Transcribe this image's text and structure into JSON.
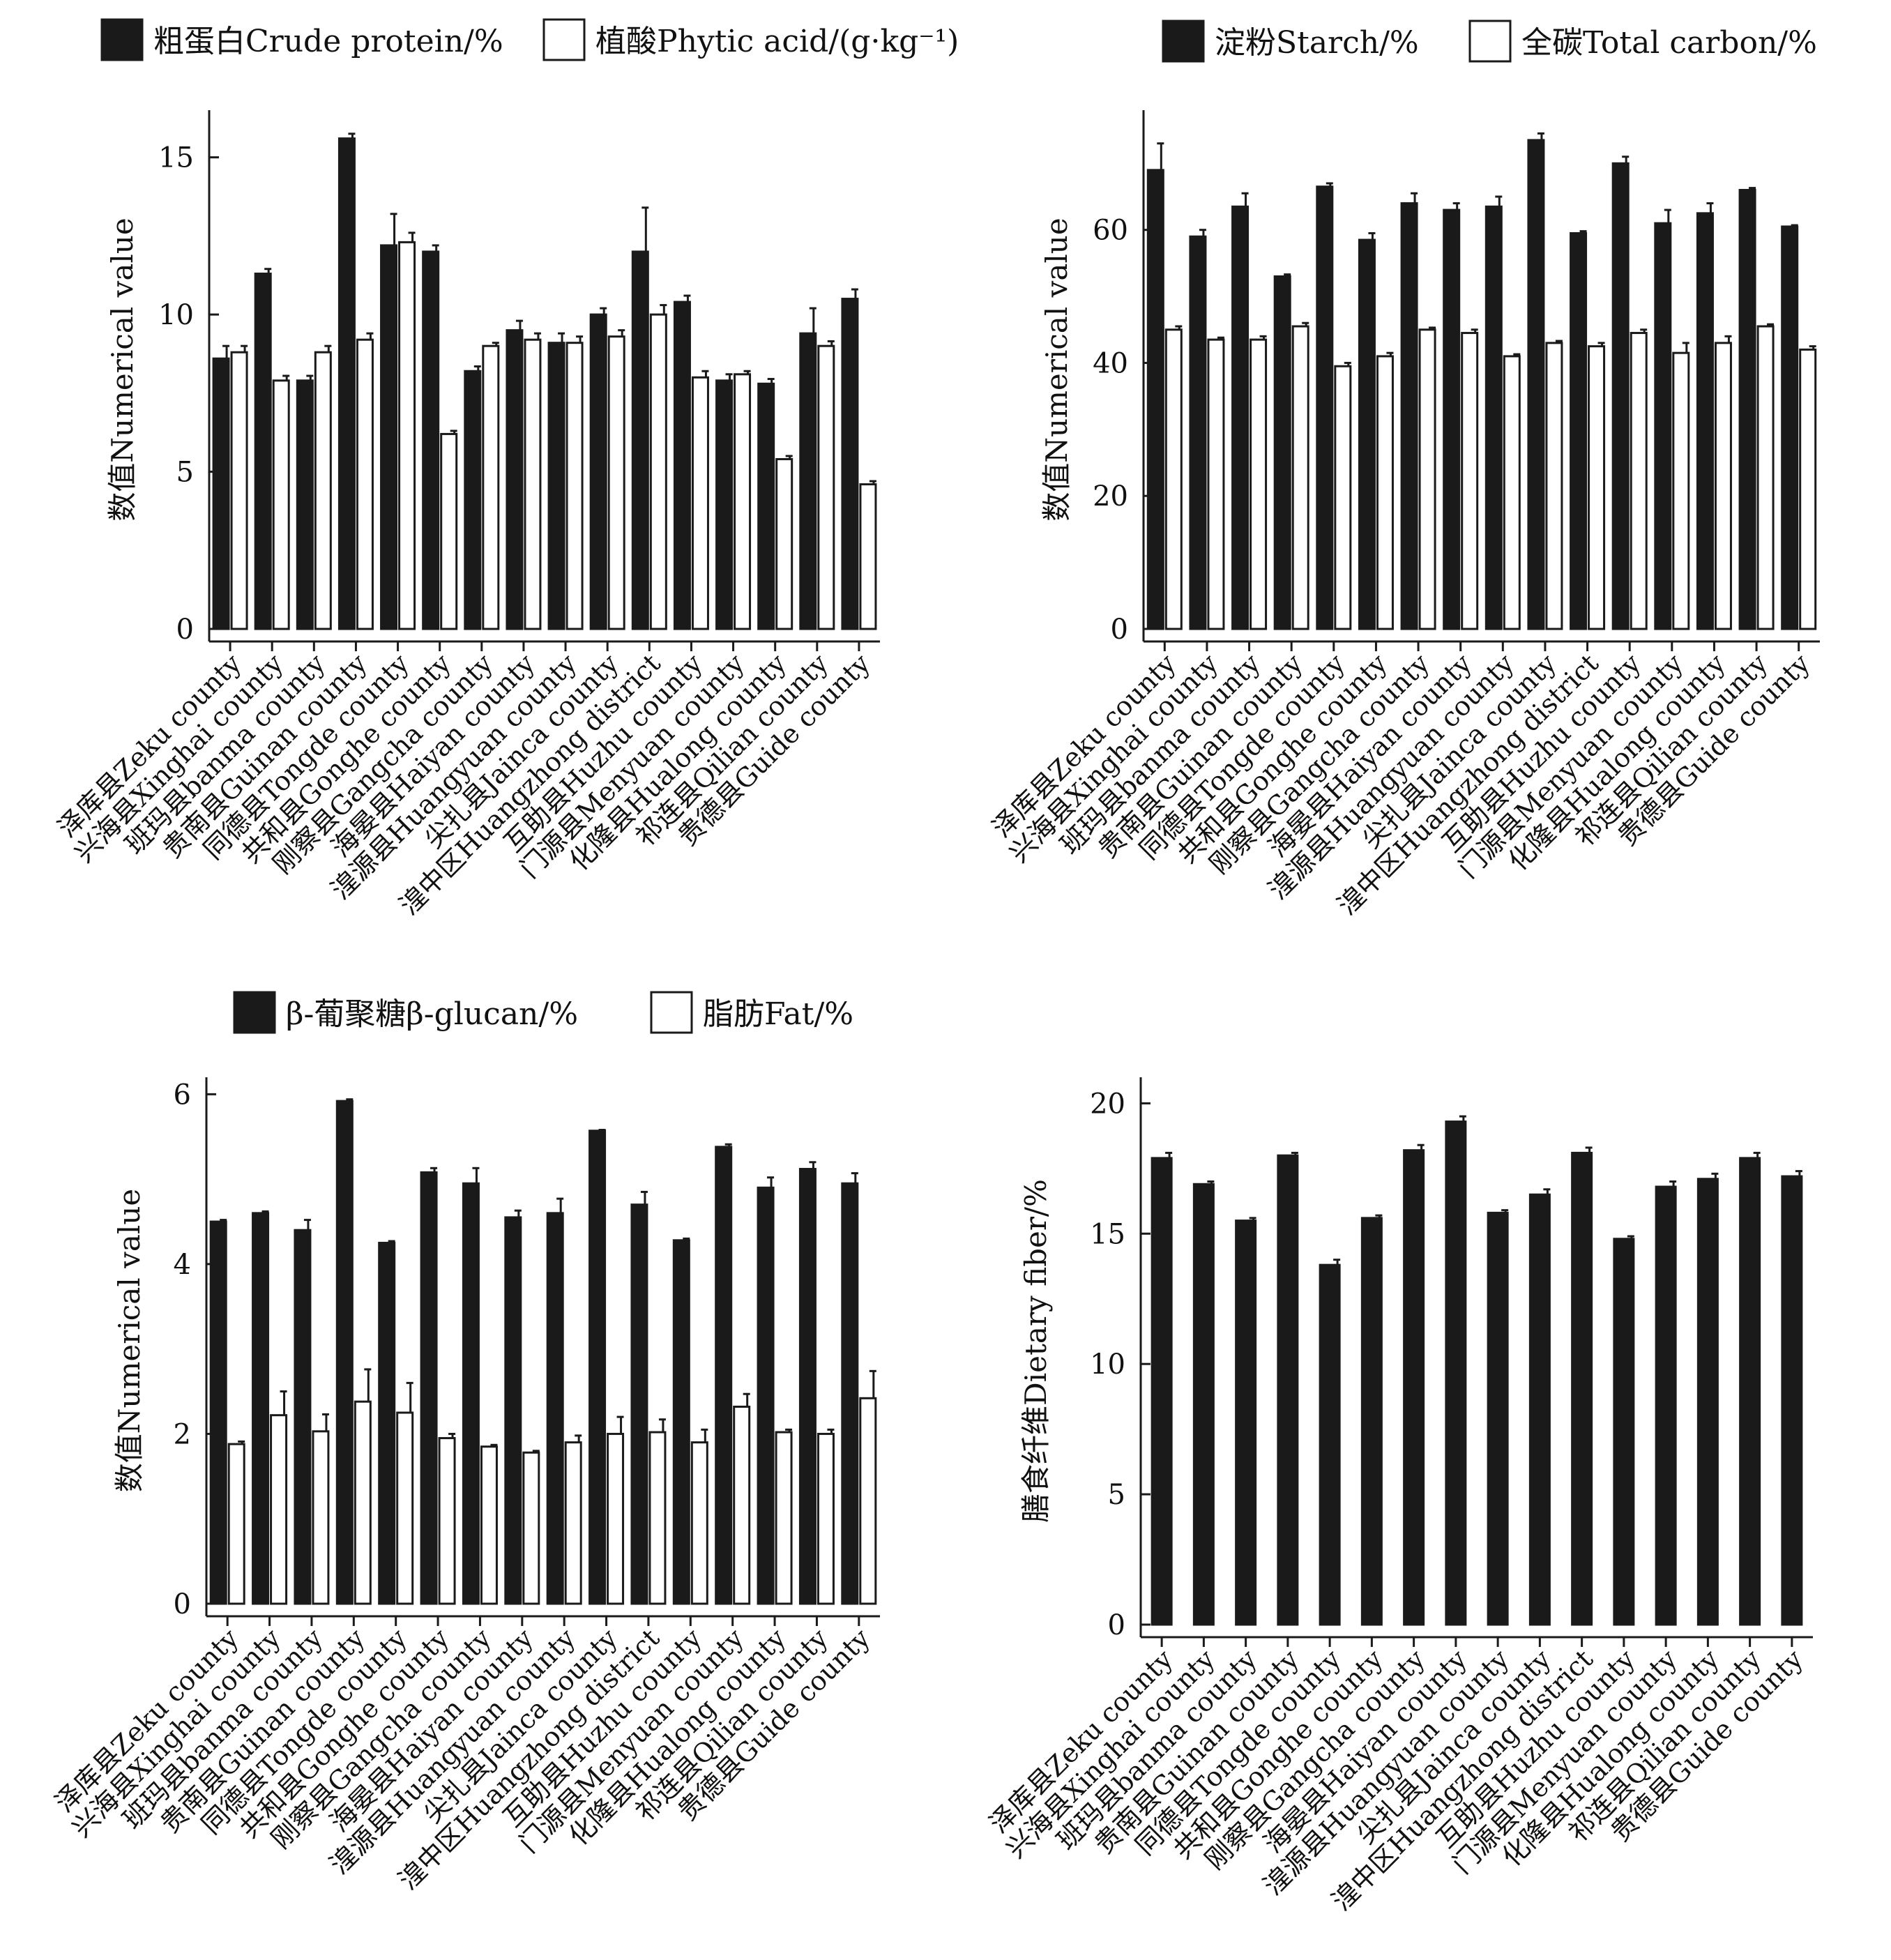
{
  "colors": {
    "filled": "#1a1a1a",
    "hollow": "#ffffff",
    "stroke": "#1a1a1a"
  },
  "chart_data": [
    {
      "type": "bar",
      "ylabel": "数值Numerical value",
      "ylim": [
        0,
        16.5
      ],
      "yticks": [
        0,
        5,
        10,
        15
      ],
      "categories": [
        "泽库县Zeku county",
        "兴海县Xinghai county",
        "班玛县banma county",
        "贵南县Guinan county",
        "同德县Tongde county",
        "共和县Gonghe county",
        "刚察县Gangcha county",
        "海晏县Haiyan county",
        "湟源县Huangyuan county",
        "尖扎县Jainca county",
        "湟中区Huangzhong district",
        "互助县Huzhu county",
        "门源县Menyuan county",
        "化隆县Hualong county",
        "祁连县Qilian county",
        "贵德县Guide county"
      ],
      "series": [
        {
          "name": "粗蛋白Crude protein/%",
          "fill": "filled",
          "values": [
            8.6,
            11.3,
            7.9,
            15.6,
            12.2,
            12.0,
            8.2,
            9.5,
            9.1,
            10.0,
            12.0,
            10.4,
            7.9,
            7.8,
            9.4,
            10.5
          ],
          "errors": [
            0.4,
            0.15,
            0.15,
            0.15,
            1.0,
            0.2,
            0.15,
            0.3,
            0.3,
            0.2,
            1.4,
            0.2,
            0.2,
            0.15,
            0.8,
            0.3
          ]
        },
        {
          "name": "植酸Phytic acid/(g·kg⁻¹)",
          "fill": "hollow",
          "values": [
            8.8,
            7.9,
            8.8,
            9.2,
            12.3,
            6.2,
            9.0,
            9.2,
            9.1,
            9.3,
            10.0,
            8.0,
            8.1,
            5.4,
            9.0,
            4.6
          ],
          "errors": [
            0.2,
            0.15,
            0.2,
            0.2,
            0.3,
            0.1,
            0.1,
            0.2,
            0.2,
            0.2,
            0.3,
            0.2,
            0.1,
            0.1,
            0.15,
            0.1
          ]
        }
      ]
    },
    {
      "type": "bar",
      "ylabel": "数值Numerical value",
      "ylim": [
        0,
        78
      ],
      "yticks": [
        0,
        20,
        40,
        60
      ],
      "categories": [
        "泽库县Zeku county",
        "兴海县Xinghai county",
        "班玛县banma county",
        "贵南县Guinan county",
        "同德县Tongde county",
        "共和县Gonghe county",
        "刚察县Gangcha county",
        "海晏县Haiyan county",
        "湟源县Huangyuan county",
        "尖扎县Jainca county",
        "湟中区Huangzhong district",
        "互助县Huzhu county",
        "门源县Menyuan county",
        "化隆县Hualong county",
        "祁连县Qilian county",
        "贵德县Guide county"
      ],
      "series": [
        {
          "name": "淀粉Starch/%",
          "fill": "filled",
          "values": [
            69,
            59,
            63.5,
            53,
            66.5,
            58.5,
            64,
            63,
            63.5,
            73.5,
            59.5,
            70,
            61,
            62.5,
            66,
            60.5
          ],
          "errors": [
            4,
            1,
            2,
            0.3,
            0.5,
            1,
            1.5,
            1,
            1.5,
            1,
            0.3,
            1,
            2,
            1.5,
            0.3,
            0.2
          ]
        },
        {
          "name": "全碳Total carbon/%",
          "fill": "hollow",
          "values": [
            45,
            43.5,
            43.5,
            45.5,
            39.5,
            41,
            45,
            44.5,
            41,
            43,
            42.5,
            44.5,
            41.5,
            43,
            45.5,
            42
          ],
          "errors": [
            0.5,
            0.3,
            0.5,
            0.5,
            0.5,
            0.5,
            0.3,
            0.5,
            0.3,
            0.3,
            0.5,
            0.5,
            1.5,
            1,
            0.3,
            0.5
          ]
        }
      ]
    },
    {
      "type": "bar",
      "ylabel": "数值Numerical value",
      "ylim": [
        0,
        6.2
      ],
      "yticks": [
        0,
        2,
        4,
        6
      ],
      "categories": [
        "泽库县Zeku county",
        "兴海县Xinghai county",
        "班玛县banma county",
        "贵南县Guinan county",
        "同德县Tongde county",
        "共和县Gonghe county",
        "刚察县Gangcha county",
        "海晏县Haiyan county",
        "湟源县Huangyuan county",
        "尖扎县Jainca county",
        "湟中区Huangzhong district",
        "互助县Huzhu county",
        "门源县Menyuan county",
        "化隆县Hualong county",
        "祁连县Qilian county",
        "贵德县Guide county"
      ],
      "series": [
        {
          "name": "β-葡聚糖β-glucan/%",
          "fill": "filled",
          "values": [
            4.5,
            4.6,
            4.4,
            5.92,
            4.25,
            5.08,
            4.95,
            4.55,
            4.6,
            5.57,
            4.7,
            4.28,
            5.38,
            4.9,
            5.12,
            4.95
          ],
          "errors": [
            0.02,
            0.02,
            0.12,
            0.02,
            0.02,
            0.05,
            0.18,
            0.08,
            0.17,
            0.01,
            0.15,
            0.02,
            0.03,
            0.12,
            0.08,
            0.12
          ]
        },
        {
          "name": "脂肪Fat/%",
          "fill": "hollow",
          "values": [
            1.88,
            2.22,
            2.03,
            2.38,
            2.25,
            1.95,
            1.85,
            1.78,
            1.9,
            2.0,
            2.02,
            1.9,
            2.32,
            2.02,
            2.0,
            2.42
          ],
          "errors": [
            0.03,
            0.28,
            0.2,
            0.38,
            0.35,
            0.05,
            0.02,
            0.02,
            0.08,
            0.2,
            0.15,
            0.15,
            0.15,
            0.03,
            0.05,
            0.32
          ]
        }
      ]
    },
    {
      "type": "bar",
      "ylabel": "膳食纤维Dietary fiber/%",
      "ylim": [
        0,
        21
      ],
      "yticks": [
        0,
        5,
        10,
        15,
        20
      ],
      "categories": [
        "泽库县Zeku county",
        "兴海县Xinghai county",
        "班玛县banma county",
        "贵南县Guinan county",
        "同德县Tongde county",
        "共和县Gonghe county",
        "刚察县Gangcha county",
        "海晏县Haiyan county",
        "湟源县Huangyuan county",
        "尖扎县Jainca county",
        "湟中区Huangzhong district",
        "互助县Huzhu county",
        "门源县Menyuan county",
        "化隆县Hualong county",
        "祁连县Qilian county",
        "贵德县Guide county"
      ],
      "series": [
        {
          "name": "膳食纤维Dietary fiber/%",
          "fill": "filled",
          "values": [
            17.9,
            16.9,
            15.5,
            18.0,
            13.8,
            15.6,
            18.2,
            19.3,
            15.8,
            16.5,
            18.1,
            14.8,
            16.8,
            17.1,
            17.9,
            17.2
          ],
          "errors": [
            0.2,
            0.1,
            0.1,
            0.1,
            0.2,
            0.1,
            0.2,
            0.2,
            0.1,
            0.2,
            0.2,
            0.1,
            0.2,
            0.2,
            0.2,
            0.2
          ]
        }
      ]
    }
  ]
}
